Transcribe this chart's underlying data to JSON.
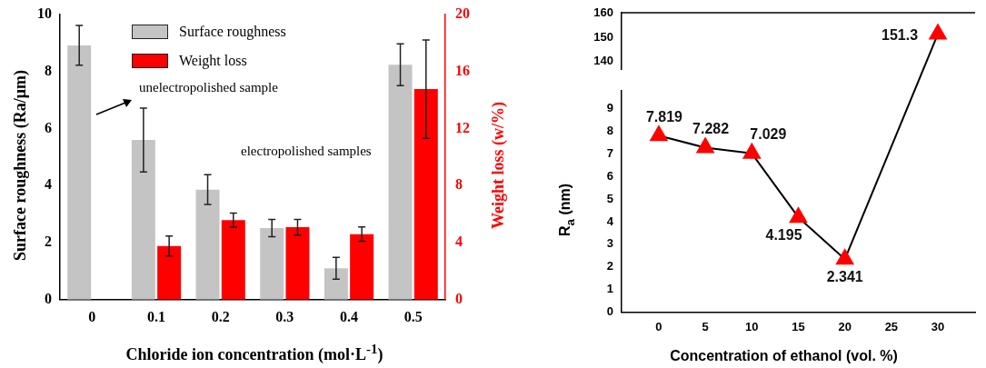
{
  "chart_data": [
    {
      "type": "bar",
      "categories": [
        "0",
        "0.1",
        "0.2",
        "0.3",
        "0.4",
        "0.5"
      ],
      "xlabel": "Chloride ion concentration (mol·L$^{-1}$)",
      "ylabel": "Surface roughness (Ra/μm)",
      "y2label": "Weight loss (w/%)",
      "legend": "top left",
      "grid": false,
      "ylim": [
        0,
        10
      ],
      "yticks": [
        0,
        2,
        4,
        6,
        8,
        10
      ],
      "y2lim": [
        0,
        20
      ],
      "y2ticks": [
        0,
        4,
        8,
        12,
        16,
        20
      ],
      "annotations": [
        "unelectropolished sample",
        "electropolished samples"
      ],
      "series": [
        {
          "name": "Surface roughness",
          "color": "#c4c4c4",
          "values": [
            8.92,
            5.6,
            3.86,
            2.51,
            1.1,
            8.24
          ],
          "errors": [
            0.7,
            1.12,
            0.52,
            0.3,
            0.38,
            0.73
          ]
        },
        {
          "name": "Weight loss",
          "color": "#ff0000",
          "axis": "y2",
          "values": [
            null,
            3.76,
            5.58,
            5.08,
            4.6,
            14.77
          ],
          "errors": [
            null,
            0.7,
            0.5,
            0.55,
            0.5,
            3.45
          ]
        }
      ]
    },
    {
      "type": "line",
      "x": [
        30
      ],
      "series": [
        {
          "color": "#ff0000",
          "values": [
            151.3
          ]
        }
      ],
      "marker": "triangle",
      "data_labels": true,
      "grid": false,
      "xlim": [
        -4,
        34
      ],
      "ylim": [
        137,
        160
      ],
      "yticks": [
        140,
        150,
        160
      ],
      "tick_labels": "y"
    },
    {
      "type": "line",
      "x": [
        0,
        5,
        10,
        15,
        20
      ],
      "series": [
        {
          "color": "#ff0000",
          "values": [
            7.819,
            7.282,
            7.029,
            4.195,
            2.341
          ]
        }
      ],
      "marker": "triangle",
      "data_labels": true,
      "grid": false,
      "xlim": [
        -4,
        34
      ],
      "xticks": [
        0,
        5,
        10,
        15,
        20,
        25,
        30
      ],
      "ylim": [
        0,
        9.8
      ],
      "yticks": [
        0,
        1,
        2,
        3,
        4,
        5,
        6,
        7,
        8,
        9
      ],
      "xlabel": "Concentration of ethanol (vol. %)",
      "ylabel": "R$_{a}$ (nm)"
    }
  ]
}
